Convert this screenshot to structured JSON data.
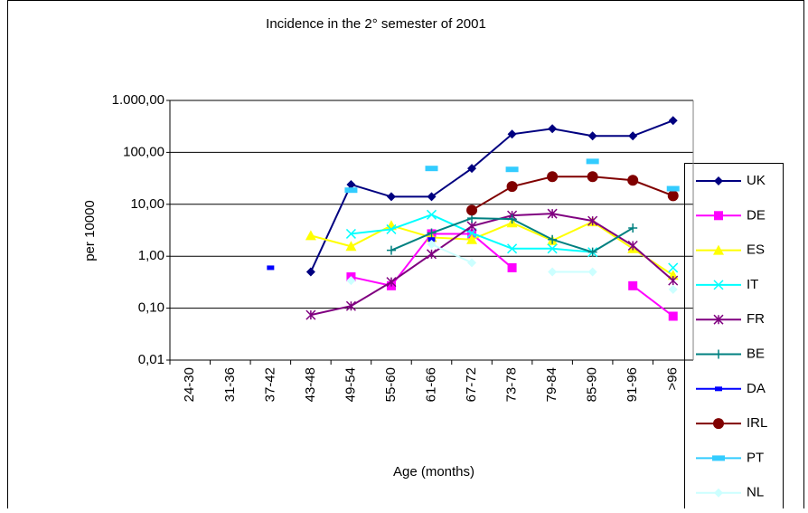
{
  "chart_data": {
    "type": "line",
    "title": "Incidence in the 2° semester of 2001",
    "y_label": "per 10000",
    "x_label": "Age (months)",
    "log_scale": true,
    "grid": true,
    "legend": "right",
    "categories": [
      "24-30",
      "31-36",
      "37-42",
      "43-48",
      "49-54",
      "55-60",
      "61-66",
      "67-72",
      "73-78",
      "79-84",
      "85-90",
      "91-96",
      ">96"
    ],
    "ylim": [
      0.01,
      1000
    ],
    "yticks": [
      {
        "value": 0.01,
        "label": "0,01"
      },
      {
        "value": 0.1,
        "label": "0,10"
      },
      {
        "value": 1,
        "label": "1,00"
      },
      {
        "value": 10,
        "label": "10,00"
      },
      {
        "value": 100,
        "label": "100,00"
      },
      {
        "value": 1000,
        "label": "1.000,00"
      }
    ],
    "series": [
      {
        "name": "UK",
        "color": "#000080",
        "marker": "diamond",
        "values": [
          null,
          null,
          null,
          0.5,
          24,
          14,
          14,
          49,
          224,
          285,
          207,
          207,
          410
        ]
      },
      {
        "name": "DE",
        "color": "#ff00ff",
        "marker": "square",
        "values": [
          null,
          null,
          null,
          null,
          0.4,
          0.27,
          2.7,
          2.7,
          0.6,
          null,
          null,
          0.27,
          0.07
        ]
      },
      {
        "name": "ES",
        "color": "#ffff00",
        "marker": "triangle",
        "values": [
          null,
          null,
          null,
          2.5,
          1.55,
          3.9,
          2.3,
          2.1,
          4.4,
          2.0,
          4.6,
          1.4,
          0.43
        ]
      },
      {
        "name": "IT",
        "color": "#00ffff",
        "marker": "x",
        "values": [
          null,
          null,
          null,
          null,
          2.7,
          3.3,
          6.3,
          2.8,
          1.4,
          1.4,
          1.2,
          null,
          0.6
        ]
      },
      {
        "name": "FR",
        "color": "#800080",
        "marker": "star",
        "values": [
          null,
          null,
          null,
          0.074,
          0.11,
          0.32,
          1.1,
          3.8,
          6.1,
          6.6,
          4.8,
          1.6,
          0.34
        ]
      },
      {
        "name": "BE",
        "color": "#008080",
        "marker": "plus",
        "values": [
          null,
          null,
          null,
          null,
          null,
          1.3,
          2.8,
          5.4,
          5.2,
          2.1,
          1.2,
          3.5,
          null
        ]
      },
      {
        "name": "DA",
        "color": "#0000ff",
        "marker": "dash",
        "values": [
          null,
          null,
          0.6,
          null,
          null,
          null,
          2.1,
          null,
          null,
          null,
          null,
          null,
          null
        ]
      },
      {
        "name": "IRL",
        "color": "#800000",
        "marker": "circle",
        "values": [
          null,
          null,
          null,
          null,
          null,
          null,
          null,
          7.7,
          22,
          34,
          34,
          29,
          14.6
        ]
      },
      {
        "name": "PT",
        "color": "#33ccff",
        "marker": "bar",
        "values": [
          null,
          null,
          null,
          null,
          18.7,
          null,
          49,
          null,
          47,
          null,
          67,
          null,
          20
        ]
      },
      {
        "name": "NL",
        "color": "#ccffff",
        "marker": "diamond",
        "values": [
          null,
          null,
          null,
          null,
          0.34,
          null,
          1.7,
          0.75,
          null,
          0.5,
          0.5,
          null,
          0.23
        ]
      }
    ]
  }
}
